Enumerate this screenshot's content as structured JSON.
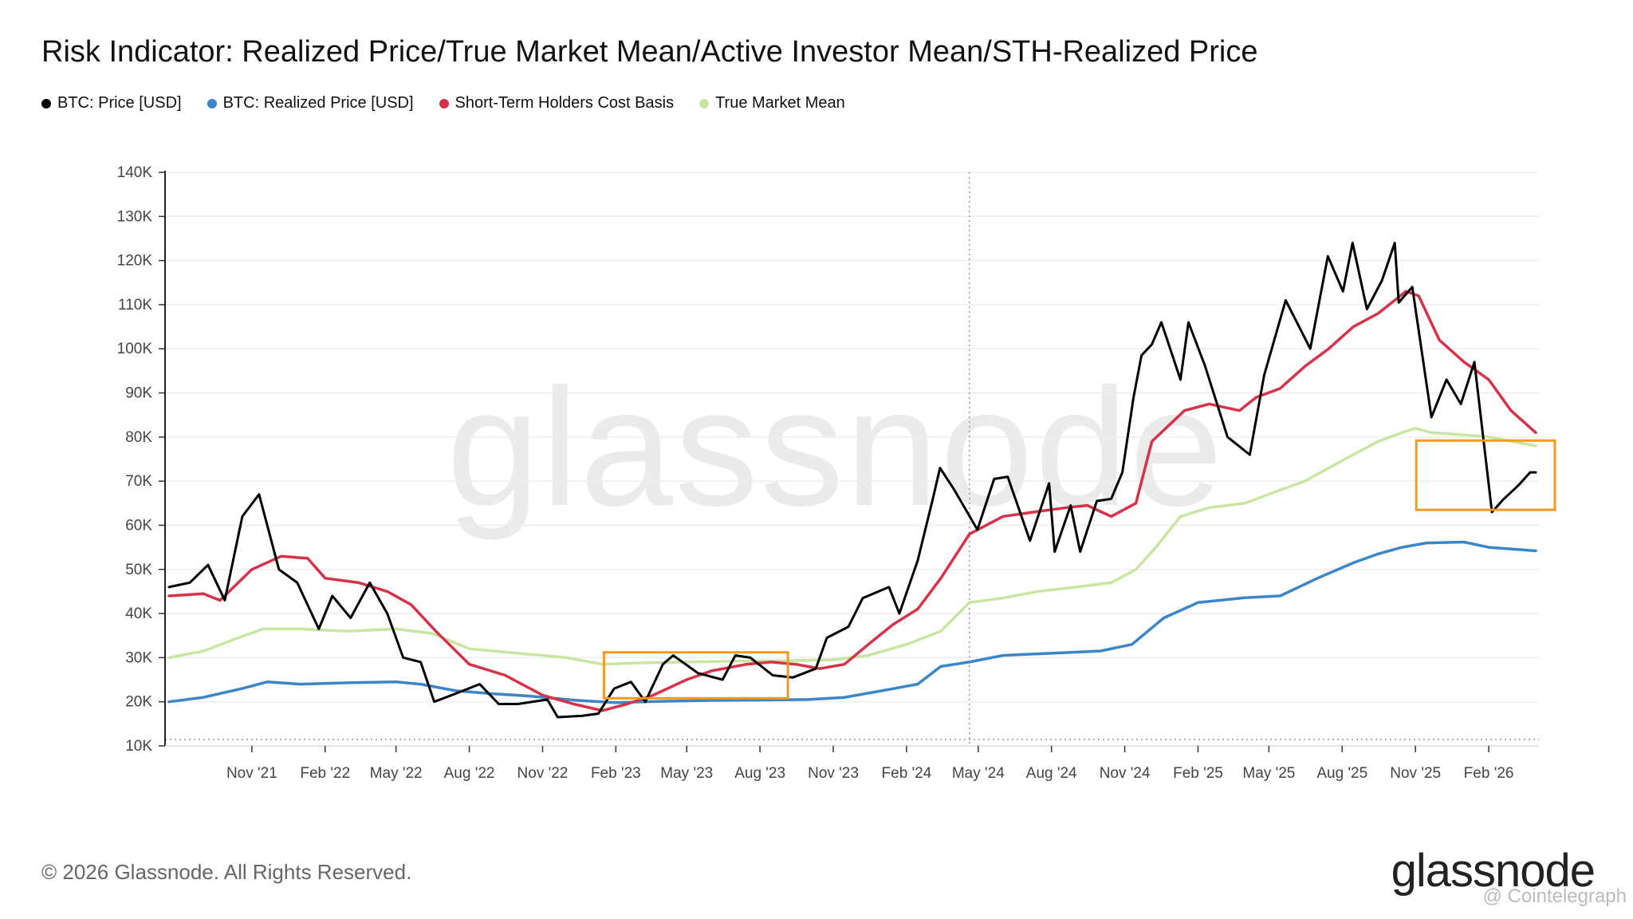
{
  "title": "Risk Indicator: Realized Price/True Market Mean/Active Investor Mean/STH-Realized Price",
  "legend": [
    {
      "label": "BTC: Price [USD]",
      "color": "#000000"
    },
    {
      "label": "BTC: Realized Price [USD]",
      "color": "#3a86c8"
    },
    {
      "label": "Short-Term Holders Cost Basis",
      "color": "#d6334a"
    },
    {
      "label": "True Market Mean",
      "color": "#c8e6a0"
    }
  ],
  "footer": "© 2026 Glassnode. All Rights Reserved.",
  "logo": "glassnode",
  "watermark": "glassnode",
  "credit": "@ Cointelegraph",
  "chart_data": {
    "type": "line",
    "x_unit": "month",
    "x_range": [
      "2021-07-15",
      "2026-04-05"
    ],
    "y_range": [
      10000,
      140000
    ],
    "y_ticks": [
      10000,
      20000,
      30000,
      40000,
      50000,
      60000,
      70000,
      80000,
      90000,
      100000,
      110000,
      120000,
      130000,
      140000
    ],
    "y_tick_labels": [
      "10K",
      "20K",
      "30K",
      "40K",
      "50K",
      "60K",
      "70K",
      "80K",
      "90K",
      "100K",
      "110K",
      "120K",
      "130K",
      "140K"
    ],
    "x_tick_labels": [
      "Nov '21",
      "Feb '22",
      "May '22",
      "Aug '22",
      "Nov '22",
      "Feb '23",
      "May '23",
      "Aug '23",
      "Nov '23",
      "Feb '24",
      "May '24",
      "Aug '24",
      "Nov '24",
      "Feb '25",
      "May '25",
      "Aug '25",
      "Nov '25",
      "Feb '26"
    ],
    "x_tick_dates": [
      "2021-11-01",
      "2022-02-01",
      "2022-05-01",
      "2022-08-01",
      "2022-11-01",
      "2023-02-01",
      "2023-05-01",
      "2023-08-01",
      "2023-11-01",
      "2024-02-01",
      "2024-05-01",
      "2024-08-01",
      "2024-11-01",
      "2025-02-01",
      "2025-05-01",
      "2025-08-01",
      "2025-11-01",
      "2026-02-01"
    ],
    "vline_date": "2024-04-20",
    "grid": true,
    "series": [
      {
        "name": "BTC: Price [USD]",
        "color": "#000000",
        "x": [
          "2021-07-20",
          "2021-08-15",
          "2021-09-07",
          "2021-09-28",
          "2021-10-20",
          "2021-11-10",
          "2021-12-05",
          "2021-12-28",
          "2022-01-24",
          "2022-02-10",
          "2022-03-05",
          "2022-03-29",
          "2022-04-20",
          "2022-05-10",
          "2022-06-01",
          "2022-06-18",
          "2022-07-10",
          "2022-08-14",
          "2022-09-07",
          "2022-10-01",
          "2022-11-07",
          "2022-11-20",
          "2022-12-20",
          "2023-01-10",
          "2023-01-30",
          "2023-02-20",
          "2023-03-10",
          "2023-04-01",
          "2023-04-14",
          "2023-05-15",
          "2023-06-15",
          "2023-07-01",
          "2023-07-20",
          "2023-08-17",
          "2023-09-11",
          "2023-10-10",
          "2023-10-24",
          "2023-11-20",
          "2023-12-08",
          "2024-01-10",
          "2024-01-23",
          "2024-02-15",
          "2024-03-05",
          "2024-03-14",
          "2024-04-01",
          "2024-04-30",
          "2024-05-21",
          "2024-06-07",
          "2024-07-05",
          "2024-07-29",
          "2024-08-05",
          "2024-08-25",
          "2024-09-06",
          "2024-09-27",
          "2024-10-15",
          "2024-10-29",
          "2024-11-12",
          "2024-11-22",
          "2024-12-05",
          "2024-12-17",
          "2025-01-10",
          "2025-01-20",
          "2025-02-10",
          "2025-03-10",
          "2025-04-07",
          "2025-04-25",
          "2025-05-22",
          "2025-06-22",
          "2025-07-14",
          "2025-08-02",
          "2025-08-14",
          "2025-09-01",
          "2025-09-20",
          "2025-10-06",
          "2025-10-11",
          "2025-10-28",
          "2025-11-21",
          "2025-12-10",
          "2025-12-28",
          "2026-01-14",
          "2026-02-05",
          "2026-02-20",
          "2026-03-10",
          "2026-03-25",
          "2026-04-01"
        ],
        "y": [
          46000,
          47000,
          51000,
          43000,
          62000,
          67000,
          50000,
          47000,
          36500,
          44000,
          39000,
          47000,
          40000,
          30000,
          29000,
          20000,
          21500,
          24000,
          19500,
          19500,
          20500,
          16500,
          16800,
          17300,
          23000,
          24500,
          20000,
          28500,
          30500,
          26500,
          25000,
          30500,
          30000,
          26000,
          25500,
          27500,
          34500,
          37000,
          43500,
          46000,
          40000,
          52000,
          66000,
          73000,
          68000,
          59000,
          70500,
          71000,
          56500,
          69500,
          54000,
          64500,
          54000,
          65500,
          66000,
          72000,
          89000,
          98500,
          101000,
          106000,
          93000,
          106000,
          96000,
          80000,
          76000,
          94000,
          111000,
          100000,
          121000,
          113000,
          124000,
          109000,
          115500,
          124000,
          110500,
          114000,
          84500,
          93000,
          87500,
          97000,
          63000,
          66000,
          69000,
          72000,
          72000
        ]
      },
      {
        "name": "BTC: Realized Price [USD]",
        "color": "#3a86c8",
        "x": [
          "2021-07-20",
          "2021-09-01",
          "2021-10-20",
          "2021-11-20",
          "2022-01-01",
          "2022-03-01",
          "2022-05-01",
          "2022-06-01",
          "2022-07-15",
          "2022-09-01",
          "2022-10-15",
          "2022-12-15",
          "2023-02-01",
          "2023-04-01",
          "2023-06-01",
          "2023-08-01",
          "2023-10-01",
          "2023-11-15",
          "2024-01-01",
          "2024-02-15",
          "2024-03-15",
          "2024-04-20",
          "2024-06-01",
          "2024-08-01",
          "2024-10-01",
          "2024-11-10",
          "2024-12-20",
          "2025-02-01",
          "2025-04-01",
          "2025-05-15",
          "2025-07-01",
          "2025-08-15",
          "2025-09-15",
          "2025-10-15",
          "2025-11-15",
          "2026-01-01",
          "2026-02-01",
          "2026-04-01"
        ],
        "y": [
          20000,
          21000,
          23000,
          24500,
          24000,
          24300,
          24500,
          24000,
          22500,
          21800,
          21300,
          20300,
          19800,
          20100,
          20300,
          20400,
          20500,
          21000,
          22500,
          24000,
          28000,
          29000,
          30500,
          31000,
          31500,
          33000,
          39000,
          42500,
          43600,
          44000,
          48000,
          51500,
          53500,
          55000,
          56000,
          56200,
          55000,
          54200
        ]
      },
      {
        "name": "Short-Term Holders Cost Basis",
        "color": "#d6334a",
        "x": [
          "2021-07-20",
          "2021-09-01",
          "2021-09-22",
          "2021-11-01",
          "2021-12-08",
          "2022-01-10",
          "2022-02-01",
          "2022-03-15",
          "2022-04-20",
          "2022-05-20",
          "2022-06-20",
          "2022-08-01",
          "2022-09-15",
          "2022-11-01",
          "2022-12-10",
          "2023-01-15",
          "2023-02-15",
          "2023-03-20",
          "2023-05-01",
          "2023-06-01",
          "2023-07-15",
          "2023-08-15",
          "2023-09-15",
          "2023-10-15",
          "2023-11-15",
          "2023-12-15",
          "2024-01-15",
          "2024-02-15",
          "2024-03-15",
          "2024-04-20",
          "2024-06-01",
          "2024-07-10",
          "2024-08-20",
          "2024-09-15",
          "2024-10-15",
          "2024-11-15",
          "2024-12-05",
          "2025-01-15",
          "2025-02-15",
          "2025-03-25",
          "2025-04-15",
          "2025-05-15",
          "2025-06-15",
          "2025-07-15",
          "2025-08-15",
          "2025-09-15",
          "2025-10-20",
          "2025-11-05",
          "2025-12-01",
          "2026-01-01",
          "2026-02-01",
          "2026-03-01",
          "2026-04-01"
        ],
        "y": [
          44000,
          44500,
          43000,
          50000,
          53000,
          52500,
          48000,
          47000,
          45000,
          42000,
          36000,
          28500,
          26000,
          21500,
          19500,
          18000,
          19500,
          21500,
          25000,
          27000,
          28500,
          29000,
          28500,
          27500,
          28500,
          33000,
          37500,
          41000,
          48000,
          58000,
          62000,
          63000,
          64000,
          64500,
          62000,
          65000,
          79000,
          86000,
          87500,
          86000,
          89000,
          91000,
          96000,
          100000,
          105000,
          108000,
          113000,
          112000,
          102000,
          97000,
          93000,
          86000,
          81000
        ]
      },
      {
        "name": "True Market Mean",
        "color": "#c8e6a0",
        "x": [
          "2021-07-20",
          "2021-09-01",
          "2021-10-15",
          "2021-11-15",
          "2022-01-01",
          "2022-03-01",
          "2022-05-01",
          "2022-06-15",
          "2022-08-01",
          "2022-10-01",
          "2022-12-01",
          "2023-01-15",
          "2023-03-01",
          "2023-05-01",
          "2023-07-01",
          "2023-09-01",
          "2023-11-01",
          "2023-12-15",
          "2024-02-01",
          "2024-03-15",
          "2024-04-20",
          "2024-06-01",
          "2024-07-15",
          "2024-09-01",
          "2024-10-15",
          "2024-11-15",
          "2024-12-10",
          "2025-01-10",
          "2025-02-15",
          "2025-04-01",
          "2025-05-15",
          "2025-06-15",
          "2025-07-15",
          "2025-08-15",
          "2025-09-15",
          "2025-10-15",
          "2025-11-01",
          "2025-11-20",
          "2026-01-01",
          "2026-02-01",
          "2026-04-01"
        ],
        "y": [
          30000,
          31500,
          34500,
          36500,
          36500,
          36000,
          36500,
          35500,
          32000,
          31000,
          30000,
          28500,
          28800,
          29000,
          29200,
          29300,
          29500,
          30500,
          33000,
          36000,
          42500,
          43500,
          45000,
          46000,
          47000,
          50000,
          55000,
          62000,
          64000,
          65000,
          68000,
          70000,
          73000,
          76000,
          79000,
          81000,
          82000,
          81000,
          80500,
          80000,
          78000
        ]
      }
    ],
    "highlight_boxes": [
      {
        "x0": "2023-01-17",
        "x1": "2023-09-05",
        "y0": 20800,
        "y1": 31200,
        "color": "#f39a1e"
      },
      {
        "x0": "2025-11-02",
        "x1": "2026-04-25",
        "y0": 63500,
        "y1": 79200,
        "color": "#f39a1e"
      }
    ]
  }
}
